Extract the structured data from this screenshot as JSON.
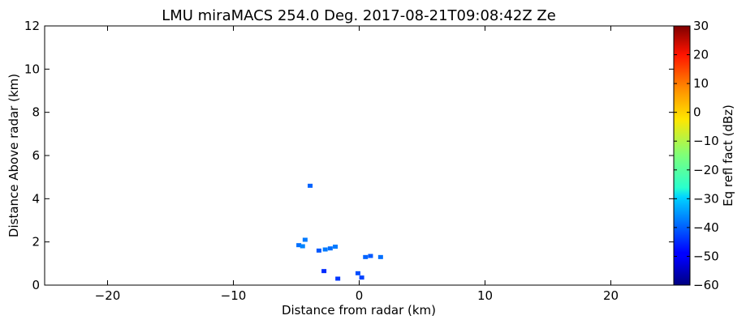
{
  "chart_data": {
    "type": "heatmap",
    "title": "LMU miraMACS 254.0 Deg. 2017-08-21T09:08:42Z  Ze",
    "xlabel": "Distance from radar (km)",
    "ylabel": "Distance Above radar  (km)",
    "xlim": [
      -25,
      25
    ],
    "ylim": [
      0,
      12
    ],
    "x_ticks": [
      -20,
      -10,
      0,
      10,
      20
    ],
    "y_ticks": [
      0,
      2,
      4,
      6,
      8,
      10,
      12
    ],
    "grid": false,
    "colorbar": {
      "label": "Eq refl fact (dBz)",
      "colormap": "jet",
      "range": [
        -60,
        30
      ],
      "ticks": [
        -60,
        -50,
        -40,
        -30,
        -20,
        -10,
        0,
        10,
        20,
        30
      ]
    },
    "echoes": [
      {
        "x": -3.9,
        "y": 4.6,
        "dbz": -40
      },
      {
        "x": -4.3,
        "y": 2.1,
        "dbz": -38
      },
      {
        "x": -4.8,
        "y": 1.85,
        "dbz": -39
      },
      {
        "x": -4.5,
        "y": 1.8,
        "dbz": -37
      },
      {
        "x": -3.2,
        "y": 1.6,
        "dbz": -41
      },
      {
        "x": -2.7,
        "y": 1.65,
        "dbz": -38
      },
      {
        "x": -2.3,
        "y": 1.7,
        "dbz": -39
      },
      {
        "x": -1.9,
        "y": 1.78,
        "dbz": -38
      },
      {
        "x": 0.5,
        "y": 1.3,
        "dbz": -40
      },
      {
        "x": 0.9,
        "y": 1.35,
        "dbz": -41
      },
      {
        "x": 1.7,
        "y": 1.3,
        "dbz": -39
      },
      {
        "x": -2.8,
        "y": 0.65,
        "dbz": -45
      },
      {
        "x": -0.1,
        "y": 0.55,
        "dbz": -42
      },
      {
        "x": -1.7,
        "y": 0.3,
        "dbz": -44
      },
      {
        "x": 0.2,
        "y": 0.35,
        "dbz": -43
      }
    ]
  }
}
